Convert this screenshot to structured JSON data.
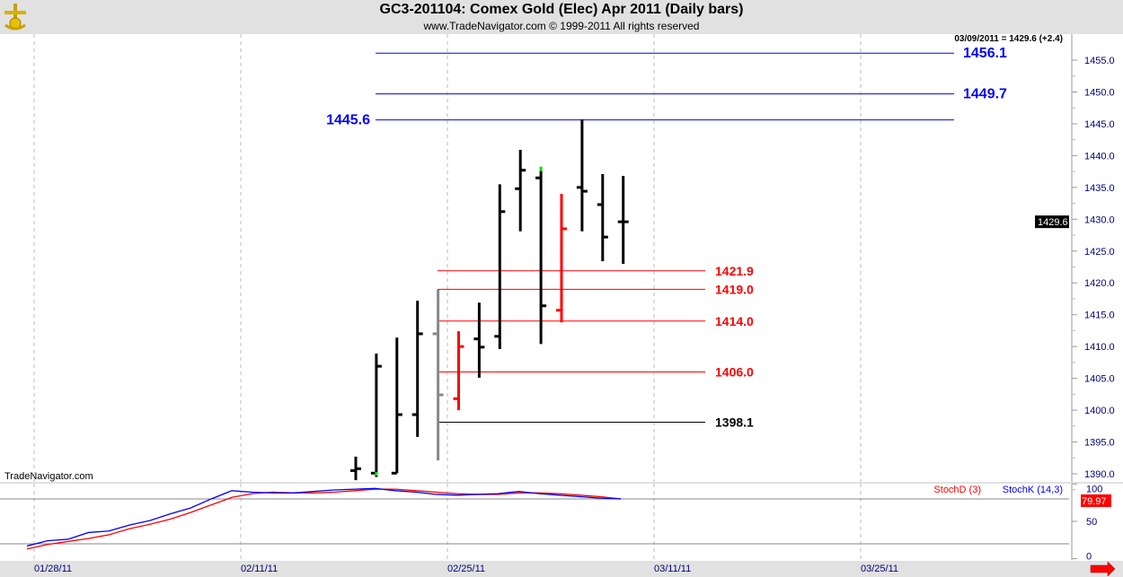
{
  "header": {
    "title": "GC3-201104:  Comex Gold (Elec) Apr 2011  (Daily bars)",
    "subtitle": "www.TradeNavigator.com © 1999-2011 All rights reserved",
    "readout": "03/09/2011 = 1429.6 (+2.4)",
    "watermark": "TradeNavigator.com"
  },
  "chart_data": [
    {
      "type": "ohlc",
      "title": "GC3-201104:  Comex Gold (Elec) Apr 2011  (Daily bars)",
      "ylim": [
        1387,
        1459
      ],
      "yticks": [
        "1390.0",
        "1395.0",
        "1400.0",
        "1405.0",
        "1410.0",
        "1415.0",
        "1420.0",
        "1425.0",
        "1430.0",
        "1435.0",
        "1440.0",
        "1445.0",
        "1450.0",
        "1455.0"
      ],
      "xticks": [
        "01/28/11",
        "02/11/11",
        "02/25/11",
        "03/11/11",
        "03/25/11"
      ],
      "last_price_label": "1429.6",
      "bars": [
        {
          "date": "02/18",
          "o": 1390.5,
          "h": 1392.7,
          "l": 1389.0,
          "c": 1390.8,
          "color": "#000000"
        },
        {
          "date": "02/21",
          "o": 1390.1,
          "h": 1408.9,
          "l": 1389.5,
          "c": 1406.9,
          "color": "#000000"
        },
        {
          "date": "02/22",
          "o": 1390.1,
          "h": 1411.4,
          "l": 1390.1,
          "c": 1399.3,
          "color": "#000000"
        },
        {
          "date": "02/23",
          "o": 1399.3,
          "h": 1417.2,
          "l": 1395.8,
          "c": 1412.0,
          "color": "#000000"
        },
        {
          "date": "02/24",
          "o": 1412.0,
          "h": 1418.9,
          "l": 1392.1,
          "c": 1402.4,
          "color": "#888888"
        },
        {
          "date": "02/25",
          "o": 1401.8,
          "h": 1412.4,
          "l": 1400.0,
          "c": 1410.0,
          "color": "#ff0000"
        },
        {
          "date": "02/28",
          "o": 1411.2,
          "h": 1416.9,
          "l": 1405.1,
          "c": 1409.9,
          "color": "#000000"
        },
        {
          "date": "03/01",
          "o": 1411.6,
          "h": 1435.5,
          "l": 1409.6,
          "c": 1431.2,
          "color": "#000000"
        },
        {
          "date": "03/02",
          "o": 1434.8,
          "h": 1440.9,
          "l": 1428.1,
          "c": 1437.7,
          "color": "#000000"
        },
        {
          "date": "03/03",
          "o": 1436.5,
          "h": 1437.7,
          "l": 1410.4,
          "c": 1416.4,
          "color": "#000000"
        },
        {
          "date": "03/04",
          "o": 1415.7,
          "h": 1434.0,
          "l": 1413.8,
          "c": 1428.5,
          "color": "#ff0000"
        },
        {
          "date": "03/07",
          "o": 1435.0,
          "h": 1445.7,
          "l": 1428.1,
          "c": 1434.4,
          "color": "#000000"
        },
        {
          "date": "03/08",
          "o": 1432.3,
          "h": 1437.1,
          "l": 1423.4,
          "c": 1427.2,
          "color": "#000000"
        },
        {
          "date": "03/09",
          "o": 1429.6,
          "h": 1436.8,
          "l": 1423.0,
          "c": 1429.6,
          "color": "#000000"
        }
      ],
      "levels": [
        {
          "label": "1456.1",
          "value": 1456.1,
          "color": "#0000ff",
          "label_side": "right"
        },
        {
          "label": "1449.7",
          "value": 1449.7,
          "color": "#0000ff",
          "label_side": "right"
        },
        {
          "label": "1445.6",
          "value": 1445.6,
          "color": "#0000ff",
          "label_side": "left"
        },
        {
          "label": "1421.9",
          "value": 1421.9,
          "color": "#ff0000",
          "label_side": "right"
        },
        {
          "label": "1419.0",
          "value": 1419.0,
          "color": "#ff0000",
          "label_side": "right"
        },
        {
          "label": "1414.0",
          "value": 1414.0,
          "color": "#ff0000",
          "label_side": "right"
        },
        {
          "label": "1406.0",
          "value": 1406.0,
          "color": "#ff0000",
          "label_side": "right"
        },
        {
          "label": "1398.1",
          "value": 1398.1,
          "color": "#000000",
          "label_side": "right"
        }
      ]
    },
    {
      "type": "line",
      "ylim": [
        0,
        100
      ],
      "yticks": [
        "100",
        "50",
        "0"
      ],
      "reference_lines": [
        80,
        20
      ],
      "last_value_label": "79.97",
      "series": [
        {
          "name": "StochD (3)",
          "color": "#ff0000",
          "values": [
            13,
            19,
            23,
            27,
            32,
            40,
            46,
            53,
            62,
            72,
            82,
            87,
            89,
            88,
            88,
            89,
            91,
            93,
            93,
            91,
            89,
            87,
            86,
            86,
            88,
            88,
            87,
            85,
            83,
            80
          ]
        },
        {
          "name": "StochK (14,3)",
          "color": "#0000ff",
          "values": [
            17,
            24,
            26,
            35,
            37,
            45,
            51,
            60,
            68,
            80,
            91,
            89,
            88,
            88,
            90,
            92,
            93,
            94,
            91,
            89,
            86,
            85,
            86,
            87,
            90,
            87,
            85,
            83,
            81,
            80
          ]
        }
      ]
    }
  ]
}
